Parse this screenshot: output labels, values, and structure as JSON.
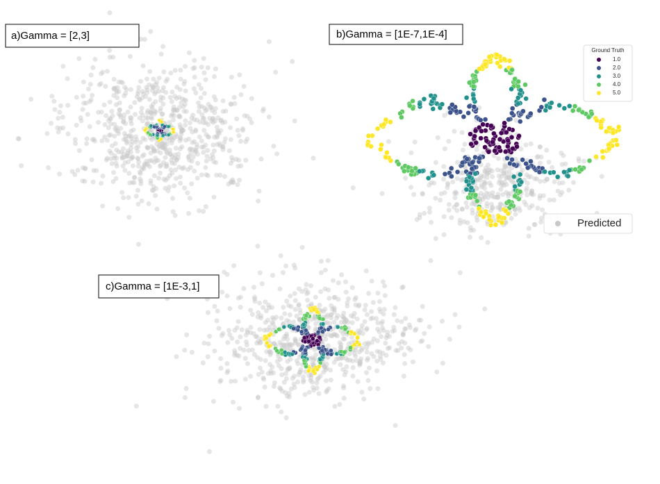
{
  "panels": [
    {
      "label": "a)Gamma = [2,3]"
    },
    {
      "label": "b)Gamma = [1E-7,1E-4]"
    },
    {
      "label": "c)Gamma = [1E-3,1]"
    }
  ],
  "legend": {
    "title": "Ground Truth",
    "entries": [
      {
        "label": "1.0",
        "color": "#440154"
      },
      {
        "label": "2.0",
        "color": "#3b528b"
      },
      {
        "label": "3.0",
        "color": "#21918c"
      },
      {
        "label": "4.0",
        "color": "#5ec962"
      },
      {
        "label": "5.0",
        "color": "#fde725"
      }
    ]
  },
  "predicted": {
    "label": "Predicted",
    "color": "#c8c8c8"
  }
}
